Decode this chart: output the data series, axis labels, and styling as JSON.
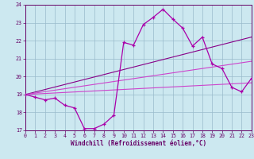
{
  "xlabel": "Windchill (Refroidissement éolien,°C)",
  "background_color": "#cce8f0",
  "grid_color": "#99bbcc",
  "plot_bg": "#cce8f0",
  "line_main_color": "#aa00aa",
  "line_trend1_color": "#cc44cc",
  "line_trend2_color": "#aa22aa",
  "line_trend3_color": "#880088",
  "tick_color": "#660066",
  "spine_color": "#660066",
  "xlim": [
    0,
    23
  ],
  "ylim": [
    17,
    24
  ],
  "yticks": [
    17,
    18,
    19,
    20,
    21,
    22,
    23,
    24
  ],
  "xticks": [
    0,
    1,
    2,
    3,
    4,
    5,
    6,
    7,
    8,
    9,
    10,
    11,
    12,
    13,
    14,
    15,
    16,
    17,
    18,
    19,
    20,
    21,
    22,
    23
  ],
  "line1_x": [
    0,
    1,
    2,
    3,
    4,
    5,
    6,
    7,
    8,
    9,
    10,
    11,
    12,
    13,
    14,
    15,
    16,
    17,
    18,
    19,
    20,
    21,
    22,
    23
  ],
  "line1_y": [
    19.0,
    18.85,
    18.7,
    18.8,
    18.4,
    18.25,
    17.1,
    17.1,
    17.35,
    17.85,
    21.9,
    21.75,
    22.9,
    23.3,
    23.75,
    23.2,
    22.7,
    21.7,
    22.2,
    20.7,
    20.45,
    19.4,
    19.15,
    19.9
  ],
  "trend1_x": [
    0,
    23
  ],
  "trend1_y": [
    19.0,
    22.2
  ],
  "trend2_x": [
    0,
    23
  ],
  "trend2_y": [
    19.0,
    20.85
  ],
  "trend3_x": [
    0,
    23
  ],
  "trend3_y": [
    19.0,
    19.65
  ]
}
